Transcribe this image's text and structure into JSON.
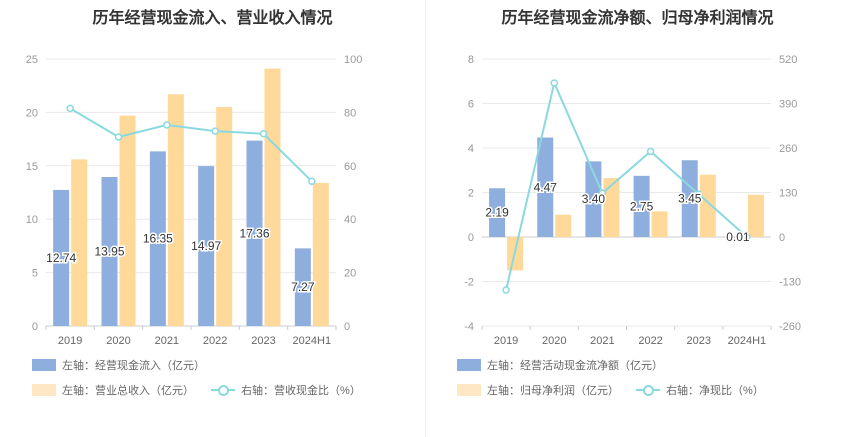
{
  "colors": {
    "bar1": "#8eaedd",
    "bar2": "#fed99a",
    "line": "#8ad9e0",
    "grid": "#e9e9e9"
  },
  "chart_data": [
    {
      "type": "bar",
      "title": "历年经营现金流入、营业收入情况",
      "categories": [
        "2019",
        "2020",
        "2021",
        "2022",
        "2023",
        "2024H1"
      ],
      "left_axis": {
        "min": 0,
        "max": 25,
        "ticks": [
          "0",
          "5",
          "10",
          "15",
          "20",
          "25"
        ]
      },
      "right_axis": {
        "min": 0,
        "max": 100,
        "ticks": [
          "0",
          "20",
          "40",
          "60",
          "80",
          "100"
        ]
      },
      "series": [
        {
          "name": "左轴：经营现金流入（亿元）",
          "kind": "bar",
          "axis": "left",
          "values": [
            12.74,
            13.95,
            16.35,
            14.97,
            17.36,
            7.27
          ],
          "labels": [
            "12.74",
            "13.95",
            "16.35",
            "14.97",
            "17.36",
            "7.27"
          ]
        },
        {
          "name": "左轴：营业总收入（亿元）",
          "kind": "bar",
          "axis": "left",
          "values": [
            15.6,
            19.7,
            21.7,
            20.5,
            24.1,
            13.4
          ]
        },
        {
          "name": "右轴：营收现金比（%）",
          "kind": "line",
          "axis": "right",
          "values": [
            81.5,
            70.8,
            75.3,
            73.0,
            72.0,
            54.2
          ]
        }
      ]
    },
    {
      "type": "bar",
      "title": "历年经营现金流净额、归母净利润情况",
      "categories": [
        "2019",
        "2020",
        "2021",
        "2022",
        "2023",
        "2024H1"
      ],
      "left_axis": {
        "min": -4,
        "max": 8,
        "ticks": [
          "-4",
          "-2",
          "0",
          "2",
          "4",
          "6",
          "8"
        ]
      },
      "right_axis": {
        "min": -260,
        "max": 520,
        "ticks": [
          "-260",
          "-130",
          "0",
          "130",
          "260",
          "390",
          "520"
        ]
      },
      "series": [
        {
          "name": "左轴：经营活动现金流净额（亿元）",
          "kind": "bar",
          "axis": "left",
          "values": [
            2.19,
            4.47,
            3.4,
            2.75,
            3.45,
            0.01
          ],
          "labels": [
            "2.19",
            "4.47",
            "3.40",
            "2.75",
            "3.45",
            "0.01"
          ]
        },
        {
          "name": "左轴：归母净利润（亿元）",
          "kind": "bar",
          "axis": "left",
          "values": [
            -1.5,
            1.0,
            2.65,
            1.15,
            2.8,
            1.9
          ]
        },
        {
          "name": "右轴：净现比（%）",
          "kind": "line",
          "axis": "right",
          "values": [
            -155,
            450,
            128,
            250,
            125,
            0
          ]
        }
      ]
    }
  ]
}
